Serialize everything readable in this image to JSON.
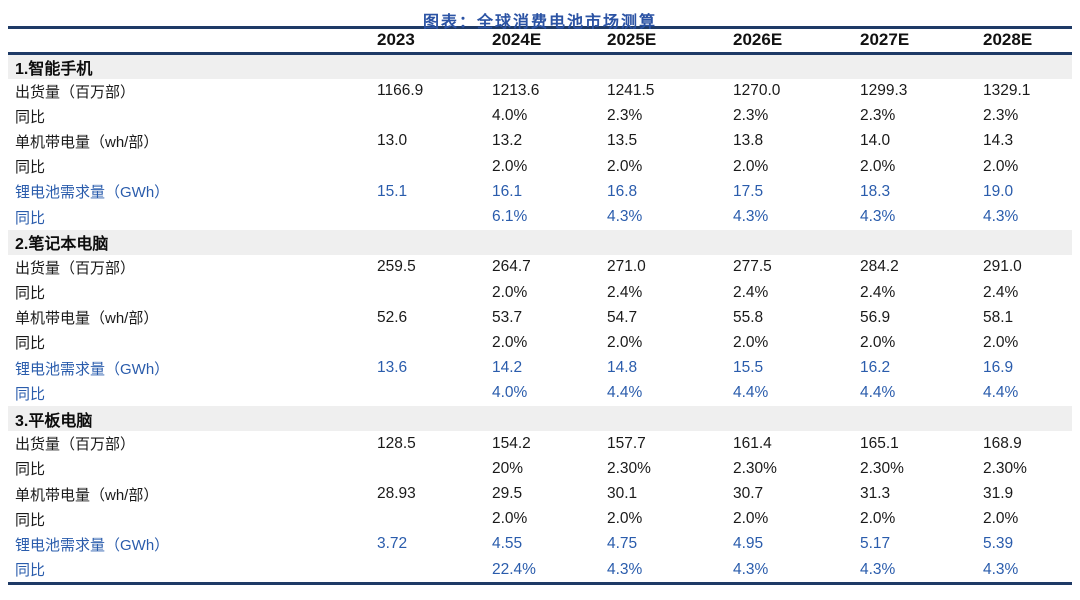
{
  "title": "图表：全球消费电池市场测算",
  "colors": {
    "title_blue": "#2B53A4",
    "rule_navy": "#1E3A66",
    "highlight_blue": "#2A5CAC",
    "section_band_gray": "#EFEFEF",
    "body_black": "#1A1A1A"
  },
  "chart_data": {
    "type": "table",
    "title": "图表：全球消费电池市场测算",
    "columns": [
      "",
      "2023",
      "2024E",
      "2025E",
      "2026E",
      "2027E",
      "2028E"
    ],
    "sections": [
      {
        "name": "1.智能手机",
        "rows": [
          {
            "label": "出货量（百万部）",
            "style": "black",
            "values": [
              "1166.9",
              "1213.6",
              "1241.5",
              "1270.0",
              "1299.3",
              "1329.1"
            ]
          },
          {
            "label": "同比",
            "style": "black",
            "values": [
              "",
              "4.0%",
              "2.3%",
              "2.3%",
              "2.3%",
              "2.3%"
            ]
          },
          {
            "label": "单机带电量（wh/部）",
            "style": "black",
            "values": [
              "13.0",
              "13.2",
              "13.5",
              "13.8",
              "14.0",
              "14.3"
            ]
          },
          {
            "label": "同比",
            "style": "black",
            "values": [
              "",
              "2.0%",
              "2.0%",
              "2.0%",
              "2.0%",
              "2.0%"
            ]
          },
          {
            "label": "锂电池需求量（GWh）",
            "style": "blue",
            "values": [
              "15.1",
              "16.1",
              "16.8",
              "17.5",
              "18.3",
              "19.0"
            ]
          },
          {
            "label": "同比",
            "style": "blue",
            "values": [
              "",
              "6.1%",
              "4.3%",
              "4.3%",
              "4.3%",
              "4.3%"
            ]
          }
        ]
      },
      {
        "name": "2.笔记本电脑",
        "rows": [
          {
            "label": "出货量（百万部）",
            "style": "black",
            "values": [
              "259.5",
              "264.7",
              "271.0",
              "277.5",
              "284.2",
              "291.0"
            ]
          },
          {
            "label": "同比",
            "style": "black",
            "values": [
              "",
              "2.0%",
              "2.4%",
              "2.4%",
              "2.4%",
              "2.4%"
            ]
          },
          {
            "label": "单机带电量（wh/部）",
            "style": "black",
            "values": [
              "52.6",
              "53.7",
              "54.7",
              "55.8",
              "56.9",
              "58.1"
            ]
          },
          {
            "label": "同比",
            "style": "black",
            "values": [
              "",
              "2.0%",
              "2.0%",
              "2.0%",
              "2.0%",
              "2.0%"
            ]
          },
          {
            "label": "锂电池需求量（GWh）",
            "style": "blue",
            "values": [
              "13.6",
              "14.2",
              "14.8",
              "15.5",
              "16.2",
              "16.9"
            ]
          },
          {
            "label": "同比",
            "style": "blue",
            "values": [
              "",
              "4.0%",
              "4.4%",
              "4.4%",
              "4.4%",
              "4.4%"
            ]
          }
        ]
      },
      {
        "name": "3.平板电脑",
        "rows": [
          {
            "label": "出货量（百万部）",
            "style": "black",
            "values": [
              "128.5",
              "154.2",
              "157.7",
              "161.4",
              "165.1",
              "168.9"
            ]
          },
          {
            "label": "同比",
            "style": "black",
            "values": [
              "",
              "20%",
              "2.30%",
              "2.30%",
              "2.30%",
              "2.30%"
            ]
          },
          {
            "label": "单机带电量（wh/部）",
            "style": "black",
            "values": [
              "28.93",
              "29.5",
              "30.1",
              "30.7",
              "31.3",
              "31.9"
            ]
          },
          {
            "label": "同比",
            "style": "black",
            "values": [
              "",
              "2.0%",
              "2.0%",
              "2.0%",
              "2.0%",
              "2.0%"
            ]
          },
          {
            "label": "锂电池需求量（GWh）",
            "style": "blue",
            "values": [
              "3.72",
              "4.55",
              "4.75",
              "4.95",
              "5.17",
              "5.39"
            ]
          },
          {
            "label": "同比",
            "style": "blue",
            "values": [
              "",
              "22.4%",
              "4.3%",
              "4.3%",
              "4.3%",
              "4.3%"
            ]
          }
        ]
      }
    ]
  }
}
